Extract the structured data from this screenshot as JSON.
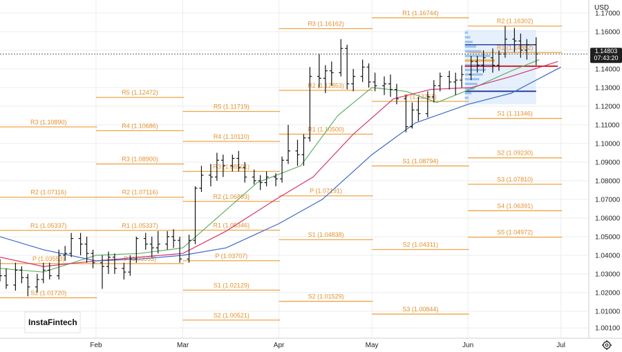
{
  "currency_label": "USD",
  "brand": "InstaFintech",
  "price_badge": {
    "price": "1.14803",
    "countdown": "07:43:20"
  },
  "settings_icon": "gear-icon",
  "colors": {
    "pivot": "#f0a444",
    "pivot_label": "#e3912f",
    "candle": "#111111",
    "ma_fast": "#5fae64",
    "ma_mid": "#d6336c",
    "ma_slow": "#3d67c9",
    "vp_fill": "#cfe3fa",
    "vp_bar": "#8db9ec",
    "vp_poc": "#f2a93b",
    "vp_line_red": "#cc2222",
    "vp_line_blue": "#2b3f9e",
    "badge_bg": "#1f1f1f",
    "grid": "#ececec"
  },
  "chart_data": {
    "type": "candlestick",
    "title": "",
    "xlabel": "",
    "ylabel": "USD",
    "ylim": [
      0.9955,
      1.177
    ],
    "y_ticks": [
      "1.00100",
      "1.01000",
      "1.02000",
      "1.03000",
      "1.04000",
      "1.05000",
      "1.06000",
      "1.07000",
      "1.08000",
      "1.09000",
      "1.10000",
      "1.11000",
      "1.12000",
      "1.13000",
      "1.14000",
      "1.15000",
      "1.16000",
      "1.17000"
    ],
    "x_ticks": [
      "Feb",
      "Mar",
      "Apr",
      "May",
      "Jun",
      "Jul"
    ],
    "x_tick_dates": [
      "2025-02-01",
      "2025-03-01",
      "2025-04-01",
      "2025-05-01",
      "2025-06-01",
      "2025-07-01"
    ],
    "x_start": "2025-01-01",
    "x_end": "2025-07-10",
    "last_price": 1.14803,
    "gridlines": true,
    "pivot_levels": [
      {
        "period": "Jan",
        "start": "2025-01-01",
        "end": "2025-01-31",
        "levels": [
          [
            "R3",
            1.1089
          ],
          [
            "R2",
            1.07116
          ],
          [
            "R1",
            1.05337
          ],
          [
            "P",
            1.03553
          ],
          [
            "S1",
            1.0172
          ]
        ]
      },
      {
        "period": "Feb",
        "start": "2025-02-01",
        "end": "2025-02-28",
        "levels": [
          [
            "R5",
            1.12472
          ],
          [
            "R4",
            1.10686
          ],
          [
            "R3",
            1.089
          ],
          [
            "R2",
            1.07116
          ],
          [
            "R1",
            1.05337
          ],
          [
            "P",
            1.03553
          ]
        ]
      },
      {
        "period": "Mar",
        "start": "2025-03-01",
        "end": "2025-03-31",
        "levels": [
          [
            "R5",
            1.11719
          ],
          [
            "R4",
            1.1011
          ],
          [
            "R3",
            1.08501
          ],
          [
            "R2",
            1.06893
          ],
          [
            "R1",
            1.05346
          ],
          [
            "P",
            1.03707
          ],
          [
            "S1",
            1.02129
          ],
          [
            "S2",
            1.00521
          ]
        ]
      },
      {
        "period": "Apr",
        "start": "2025-04-01",
        "end": "2025-04-30",
        "levels": [
          [
            "R3",
            1.16162
          ],
          [
            "R2",
            1.12853
          ],
          [
            "R1",
            1.105
          ],
          [
            "P",
            1.07191
          ],
          [
            "S1",
            1.04838
          ],
          [
            "S2",
            1.01529
          ]
        ]
      },
      {
        "period": "May",
        "start": "2025-05-01",
        "end": "2025-05-31",
        "levels": [
          [
            "R1",
            1.16744
          ],
          [
            "P",
            1.12261
          ],
          [
            "S1",
            1.08794
          ],
          [
            "S2",
            1.04311
          ],
          [
            "S3",
            1.00844
          ]
        ]
      },
      {
        "period": "Jun",
        "start": "2025-06-01",
        "end": "2025-06-30",
        "levels": [
          [
            "R2",
            1.16302
          ],
          [
            "R1",
            1.14882
          ],
          [
            "S1",
            1.11346
          ],
          [
            "S2",
            1.0923
          ],
          [
            "S3",
            1.0781
          ],
          [
            "S4",
            1.06391
          ],
          [
            "S5",
            1.04972
          ]
        ]
      }
    ],
    "candles": [
      [
        "2025-01-01",
        1.036,
        1.038,
        1.026,
        1.029
      ],
      [
        "2025-01-03",
        1.029,
        1.033,
        1.022,
        1.024
      ],
      [
        "2025-01-06",
        1.024,
        1.036,
        1.021,
        1.032
      ],
      [
        "2025-01-08",
        1.032,
        1.034,
        1.025,
        1.028
      ],
      [
        "2025-01-10",
        1.028,
        1.03,
        1.018,
        1.023
      ],
      [
        "2025-01-13",
        1.023,
        1.03,
        1.02,
        1.027
      ],
      [
        "2025-01-15",
        1.027,
        1.036,
        1.025,
        1.032
      ],
      [
        "2025-01-17",
        1.032,
        1.036,
        1.027,
        1.029
      ],
      [
        "2025-01-20",
        1.029,
        1.043,
        1.027,
        1.04
      ],
      [
        "2025-01-22",
        1.04,
        1.045,
        1.037,
        1.041
      ],
      [
        "2025-01-24",
        1.041,
        1.052,
        1.039,
        1.049
      ],
      [
        "2025-01-27",
        1.049,
        1.052,
        1.04,
        1.046
      ],
      [
        "2025-01-29",
        1.046,
        1.05,
        1.036,
        1.041
      ],
      [
        "2025-01-31",
        1.041,
        1.043,
        1.033,
        1.036
      ],
      [
        "2025-02-03",
        1.036,
        1.04,
        1.022,
        1.034
      ],
      [
        "2025-02-05",
        1.034,
        1.042,
        1.03,
        1.039
      ],
      [
        "2025-02-07",
        1.039,
        1.041,
        1.03,
        1.033
      ],
      [
        "2025-02-10",
        1.033,
        1.036,
        1.027,
        1.031
      ],
      [
        "2025-02-12",
        1.031,
        1.04,
        1.029,
        1.038
      ],
      [
        "2025-02-14",
        1.038,
        1.05,
        1.036,
        1.049
      ],
      [
        "2025-02-17",
        1.049,
        1.052,
        1.043,
        1.046
      ],
      [
        "2025-02-19",
        1.046,
        1.05,
        1.039,
        1.044
      ],
      [
        "2025-02-21",
        1.044,
        1.053,
        1.041,
        1.046
      ],
      [
        "2025-02-24",
        1.046,
        1.053,
        1.043,
        1.05
      ],
      [
        "2025-02-26",
        1.05,
        1.054,
        1.044,
        1.048
      ],
      [
        "2025-02-28",
        1.048,
        1.05,
        1.036,
        1.038
      ],
      [
        "2025-03-03",
        1.038,
        1.051,
        1.036,
        1.048
      ],
      [
        "2025-03-05",
        1.048,
        1.077,
        1.046,
        1.076
      ],
      [
        "2025-03-07",
        1.076,
        1.088,
        1.074,
        1.083
      ],
      [
        "2025-03-10",
        1.083,
        1.089,
        1.077,
        1.082
      ],
      [
        "2025-03-12",
        1.082,
        1.095,
        1.08,
        1.091
      ],
      [
        "2025-03-14",
        1.091,
        1.094,
        1.082,
        1.088
      ],
      [
        "2025-03-17",
        1.088,
        1.094,
        1.085,
        1.092
      ],
      [
        "2025-03-19",
        1.092,
        1.096,
        1.085,
        1.087
      ],
      [
        "2025-03-21",
        1.087,
        1.09,
        1.079,
        1.082
      ],
      [
        "2025-03-24",
        1.082,
        1.086,
        1.078,
        1.08
      ],
      [
        "2025-03-26",
        1.08,
        1.083,
        1.075,
        1.079
      ],
      [
        "2025-03-28",
        1.079,
        1.085,
        1.077,
        1.082
      ],
      [
        "2025-03-31",
        1.082,
        1.084,
        1.077,
        1.081
      ],
      [
        "2025-04-02",
        1.081,
        1.093,
        1.079,
        1.091
      ],
      [
        "2025-04-04",
        1.091,
        1.11,
        1.089,
        1.096
      ],
      [
        "2025-04-07",
        1.096,
        1.102,
        1.088,
        1.094
      ],
      [
        "2025-04-09",
        1.094,
        1.105,
        1.088,
        1.103
      ],
      [
        "2025-04-11",
        1.103,
        1.141,
        1.101,
        1.136
      ],
      [
        "2025-04-14",
        1.136,
        1.148,
        1.13,
        1.135
      ],
      [
        "2025-04-16",
        1.135,
        1.142,
        1.127,
        1.139
      ],
      [
        "2025-04-18",
        1.139,
        1.144,
        1.131,
        1.138
      ],
      [
        "2025-04-21",
        1.138,
        1.156,
        1.136,
        1.151
      ],
      [
        "2025-04-23",
        1.151,
        1.153,
        1.129,
        1.132
      ],
      [
        "2025-04-25",
        1.132,
        1.14,
        1.128,
        1.136
      ],
      [
        "2025-04-28",
        1.136,
        1.145,
        1.133,
        1.141
      ],
      [
        "2025-04-30",
        1.141,
        1.143,
        1.13,
        1.133
      ],
      [
        "2025-05-02",
        1.133,
        1.138,
        1.128,
        1.131
      ],
      [
        "2025-05-05",
        1.131,
        1.136,
        1.126,
        1.132
      ],
      [
        "2025-05-07",
        1.132,
        1.137,
        1.125,
        1.129
      ],
      [
        "2025-05-09",
        1.129,
        1.132,
        1.121,
        1.124
      ],
      [
        "2025-05-12",
        1.124,
        1.126,
        1.106,
        1.109
      ],
      [
        "2025-05-14",
        1.109,
        1.122,
        1.108,
        1.118
      ],
      [
        "2025-05-16",
        1.118,
        1.125,
        1.112,
        1.116
      ],
      [
        "2025-05-19",
        1.116,
        1.128,
        1.114,
        1.125
      ],
      [
        "2025-05-21",
        1.125,
        1.134,
        1.122,
        1.131
      ],
      [
        "2025-05-23",
        1.131,
        1.138,
        1.128,
        1.136
      ],
      [
        "2025-05-26",
        1.136,
        1.139,
        1.129,
        1.133
      ],
      [
        "2025-05-28",
        1.133,
        1.138,
        1.126,
        1.134
      ],
      [
        "2025-05-30",
        1.134,
        1.142,
        1.13,
        1.137
      ],
      [
        "2025-06-02",
        1.137,
        1.147,
        1.134,
        1.144
      ],
      [
        "2025-06-04",
        1.144,
        1.147,
        1.138,
        1.142
      ],
      [
        "2025-06-06",
        1.142,
        1.15,
        1.138,
        1.146
      ],
      [
        "2025-06-09",
        1.146,
        1.151,
        1.138,
        1.142
      ],
      [
        "2025-06-11",
        1.142,
        1.15,
        1.139,
        1.148
      ],
      [
        "2025-06-13",
        1.148,
        1.163,
        1.146,
        1.156
      ],
      [
        "2025-06-16",
        1.156,
        1.162,
        1.149,
        1.155
      ],
      [
        "2025-06-18",
        1.155,
        1.159,
        1.146,
        1.15
      ],
      [
        "2025-06-20",
        1.15,
        1.156,
        1.145,
        1.153
      ],
      [
        "2025-06-23",
        1.153,
        1.157,
        1.142,
        1.148
      ]
    ],
    "moving_averages": [
      {
        "name": "",
        "color_key": "ma_fast",
        "points": [
          [
            "2025-01-01",
            1.033
          ],
          [
            "2025-01-15",
            1.031
          ],
          [
            "2025-02-01",
            1.04
          ],
          [
            "2025-02-15",
            1.041
          ],
          [
            "2025-03-01",
            1.044
          ],
          [
            "2025-03-12",
            1.06
          ],
          [
            "2025-03-25",
            1.079
          ],
          [
            "2025-04-08",
            1.088
          ],
          [
            "2025-04-20",
            1.115
          ],
          [
            "2025-05-01",
            1.13
          ],
          [
            "2025-05-12",
            1.128
          ],
          [
            "2025-05-22",
            1.122
          ],
          [
            "2025-06-03",
            1.13
          ],
          [
            "2025-06-15",
            1.139
          ],
          [
            "2025-06-24",
            1.145
          ]
        ]
      },
      {
        "name": "",
        "color_key": "ma_mid",
        "points": [
          [
            "2025-01-01",
            1.039
          ],
          [
            "2025-01-15",
            1.034
          ],
          [
            "2025-02-01",
            1.037
          ],
          [
            "2025-02-15",
            1.039
          ],
          [
            "2025-03-01",
            1.041
          ],
          [
            "2025-03-15",
            1.053
          ],
          [
            "2025-03-31",
            1.07
          ],
          [
            "2025-04-12",
            1.082
          ],
          [
            "2025-04-25",
            1.105
          ],
          [
            "2025-05-08",
            1.124
          ],
          [
            "2025-05-20",
            1.129
          ],
          [
            "2025-06-02",
            1.13
          ],
          [
            "2025-06-15",
            1.136
          ],
          [
            "2025-06-30",
            1.144
          ]
        ]
      },
      {
        "name": "",
        "color_key": "ma_slow",
        "points": [
          [
            "2025-01-01",
            1.05
          ],
          [
            "2025-01-15",
            1.043
          ],
          [
            "2025-02-01",
            1.037
          ],
          [
            "2025-02-15",
            1.038
          ],
          [
            "2025-03-01",
            1.04
          ],
          [
            "2025-03-15",
            1.044
          ],
          [
            "2025-04-01",
            1.057
          ],
          [
            "2025-04-15",
            1.07
          ],
          [
            "2025-05-01",
            1.094
          ],
          [
            "2025-05-15",
            1.111
          ],
          [
            "2025-06-01",
            1.121
          ],
          [
            "2025-06-15",
            1.127
          ],
          [
            "2025-07-01",
            1.141
          ]
        ]
      }
    ],
    "volume_profile": {
      "start": "2025-05-31",
      "end": "2025-06-23",
      "price_range": [
        1.121,
        1.161
      ],
      "poc_price": 1.145,
      "red_line": 1.1415,
      "blue_line_upper": 1.153,
      "blue_line_lower": 1.128,
      "bars": [
        [
          1.1595,
          0.1
        ],
        [
          1.157,
          0.18
        ],
        [
          1.1545,
          0.26
        ],
        [
          1.152,
          0.38
        ],
        [
          1.1495,
          0.55
        ],
        [
          1.147,
          0.85
        ],
        [
          1.1445,
          1.0
        ],
        [
          1.142,
          0.92
        ],
        [
          1.1395,
          0.7
        ],
        [
          1.137,
          0.6
        ],
        [
          1.1345,
          0.48
        ],
        [
          1.132,
          0.42
        ],
        [
          1.1295,
          0.32
        ],
        [
          1.127,
          0.22
        ],
        [
          1.1245,
          0.12
        ]
      ]
    }
  }
}
